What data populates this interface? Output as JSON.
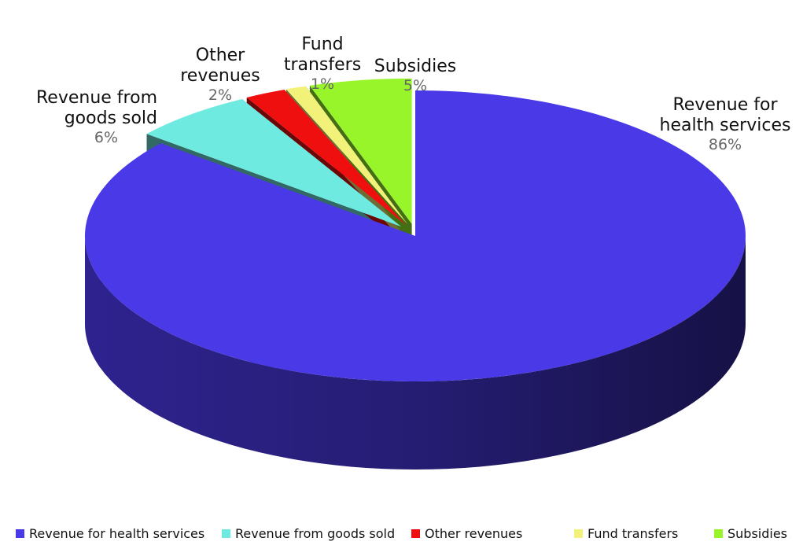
{
  "chart_data": {
    "type": "pie",
    "style": "3d-exploded",
    "slices": [
      {
        "label": "Revenue for health services",
        "value": 86,
        "value_label": "86%",
        "color": "#4a39e6",
        "label_lines": "Revenue for\nhealth services"
      },
      {
        "label": "Revenue from goods sold",
        "value": 6,
        "value_label": "6%",
        "color": "#6eeae0",
        "label_lines": "Revenue from\ngoods sold"
      },
      {
        "label": "Other revenues",
        "value": 2,
        "value_label": "2%",
        "color": "#f00f0f",
        "label_lines": "Other\nrevenues"
      },
      {
        "label": "Fund transfers",
        "value": 1,
        "value_label": "1%",
        "color": "#f2f27a",
        "label_lines": "Fund\ntransfers"
      },
      {
        "label": "Subsidies",
        "value": 5,
        "value_label": "5%",
        "color": "#98f52a",
        "label_lines": "Subsidies"
      }
    ],
    "legend": {
      "placement": "bottom",
      "entries": [
        "Revenue for health services",
        "Revenue from goods sold",
        "Other revenues",
        "Fund transfers",
        "Subsidies"
      ]
    }
  }
}
